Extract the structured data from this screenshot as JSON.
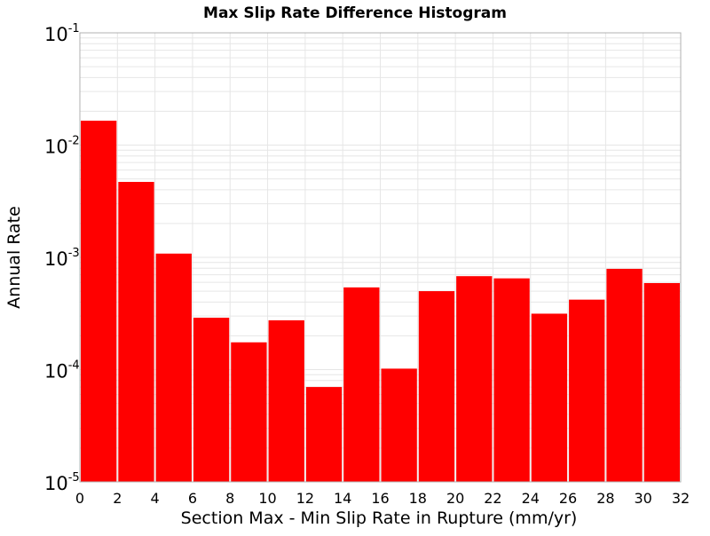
{
  "chart_data": {
    "type": "bar",
    "title": "Max Slip Rate Difference Histogram",
    "xlabel": "Section Max - Min Slip Rate in Rupture (mm/yr)",
    "ylabel": "Annual Rate",
    "y_scale": "log",
    "xlim": [
      0,
      32
    ],
    "ylim": [
      1e-05,
      0.1
    ],
    "x_ticks": [
      "0",
      "2",
      "4",
      "6",
      "8",
      "10",
      "12",
      "14",
      "16",
      "18",
      "20",
      "22",
      "24",
      "26",
      "28",
      "30",
      "32"
    ],
    "y_ticks": [
      {
        "base": "10",
        "exp": "-5"
      },
      {
        "base": "10",
        "exp": "-4"
      },
      {
        "base": "10",
        "exp": "-3"
      },
      {
        "base": "10",
        "exp": "-2"
      },
      {
        "base": "10",
        "exp": "-1"
      }
    ],
    "bin_width": 2,
    "bins": [
      {
        "x": 0,
        "value": 0.0165
      },
      {
        "x": 2,
        "value": 0.0047
      },
      {
        "x": 4,
        "value": 0.00108
      },
      {
        "x": 6,
        "value": 0.00029
      },
      {
        "x": 8,
        "value": 0.000175
      },
      {
        "x": 10,
        "value": 0.000275
      },
      {
        "x": 12,
        "value": 7e-05
      },
      {
        "x": 14,
        "value": 0.00054
      },
      {
        "x": 16,
        "value": 0.000102
      },
      {
        "x": 18,
        "value": 0.0005
      },
      {
        "x": 20,
        "value": 0.00068
      },
      {
        "x": 22,
        "value": 0.00065
      },
      {
        "x": 24,
        "value": 0.000315
      },
      {
        "x": 26,
        "value": 0.00042
      },
      {
        "x": 28,
        "value": 0.00079
      },
      {
        "x": 30,
        "value": 0.00059
      }
    ],
    "grid": true,
    "bar_color": "#ff0000",
    "grid_color": "#e6e6e6",
    "frame_color": "#b0b0b0"
  }
}
